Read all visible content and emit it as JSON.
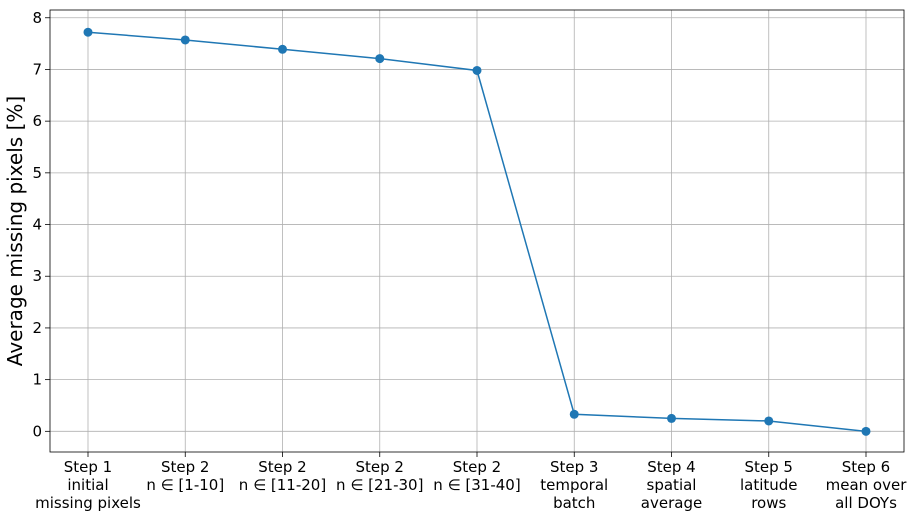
{
  "chart_data": {
    "type": "line",
    "title": "",
    "xlabel": "",
    "ylabel": "Average missing pixels [%]",
    "ylim": [
      -0.4,
      8.15
    ],
    "yticks": [
      0,
      1,
      2,
      3,
      4,
      5,
      6,
      7,
      8
    ],
    "grid": true,
    "color": "#1f77b4",
    "categories": [
      [
        "Step 1",
        "initial",
        "missing pixels"
      ],
      [
        "Step 2",
        "n ∈ [1-10]"
      ],
      [
        "Step 2",
        "n ∈ [11-20]"
      ],
      [
        "Step 2",
        "n ∈ [21-30]"
      ],
      [
        "Step 2",
        "n ∈ [31-40]"
      ],
      [
        "Step 3",
        "temporal",
        "batch"
      ],
      [
        "Step 4",
        "spatial",
        "average"
      ],
      [
        "Step 5",
        "latitude",
        "rows"
      ],
      [
        "Step 6",
        "mean over",
        "all DOYs"
      ]
    ],
    "values": [
      7.72,
      7.57,
      7.39,
      7.21,
      6.98,
      0.33,
      0.25,
      0.2,
      0.0
    ]
  }
}
